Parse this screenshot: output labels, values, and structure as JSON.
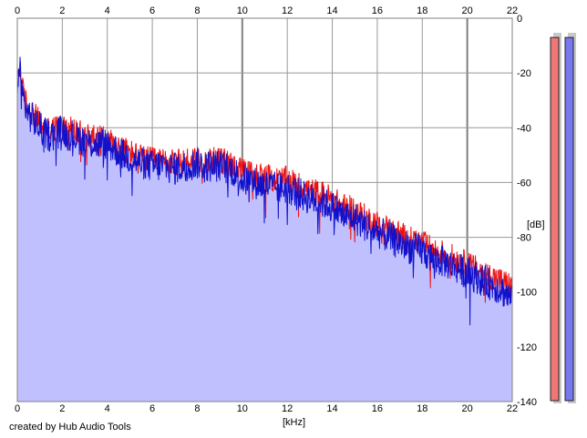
{
  "chart_data": {
    "type": "area",
    "xlabel": "[kHz]",
    "ylabel": "[dB]",
    "xlim": [
      0,
      22
    ],
    "ylim": [
      -140,
      0
    ],
    "x_ticks": [
      "0",
      "2",
      "4",
      "6",
      "8",
      "10",
      "12",
      "14",
      "16",
      "18",
      "20",
      "22"
    ],
    "y_ticks": [
      "0",
      "-20",
      "-40",
      "-60",
      "-80",
      "-100",
      "-120",
      "-140"
    ],
    "grid": true,
    "series": [
      {
        "color": "#ee1111",
        "x": [
          0,
          0.1,
          0.2,
          0.35,
          0.5,
          0.8,
          1.2,
          1.5,
          2.0,
          2.5,
          3.0,
          3.5,
          4.0,
          4.5,
          5.0,
          5.5,
          6.0,
          6.5,
          7.0,
          7.5,
          8.0,
          8.5,
          9.0,
          9.5,
          10.0,
          10.5,
          11.0,
          11.5,
          12.0,
          12.5,
          13.0,
          13.5,
          14.0,
          14.5,
          15.0,
          15.5,
          16.0,
          16.5,
          17.0,
          17.5,
          18.0,
          18.5,
          19.0,
          19.5,
          20.0,
          20.5,
          21.0,
          21.5,
          22.0
        ],
        "values": [
          -22,
          -17,
          -25,
          -30,
          -33,
          -36,
          -40,
          -41,
          -39,
          -41,
          -43,
          -44,
          -44,
          -47,
          -49,
          -51,
          -52,
          -52,
          -53,
          -52,
          -51,
          -52,
          -52,
          -53,
          -56,
          -57,
          -58,
          -59,
          -59,
          -61,
          -63,
          -64,
          -66,
          -69,
          -70,
          -73,
          -75,
          -77,
          -79,
          -81,
          -82,
          -85,
          -86,
          -88,
          -90,
          -92,
          -94,
          -96,
          -98
        ]
      },
      {
        "color": "#1111cc",
        "x": [
          0,
          0.1,
          0.2,
          0.35,
          0.5,
          0.8,
          1.2,
          1.5,
          2.0,
          2.5,
          3.0,
          3.5,
          4.0,
          4.5,
          5.0,
          5.5,
          6.0,
          6.5,
          7.0,
          7.5,
          8.0,
          8.5,
          9.0,
          9.5,
          10.0,
          10.5,
          11.0,
          11.5,
          12.0,
          12.5,
          13.0,
          13.5,
          14.0,
          14.5,
          15.0,
          15.5,
          16.0,
          16.5,
          17.0,
          17.5,
          18.0,
          18.5,
          19.0,
          19.5,
          20.0,
          20.5,
          21.0,
          21.5,
          22.0
        ],
        "values": [
          -25,
          -18,
          -27,
          -32,
          -35,
          -38,
          -42,
          -43,
          -41,
          -43,
          -45,
          -46,
          -46,
          -49,
          -51,
          -53,
          -54,
          -54,
          -55,
          -54,
          -53,
          -54,
          -54,
          -55,
          -59,
          -60,
          -61,
          -62,
          -62,
          -64,
          -66,
          -67,
          -69,
          -72,
          -73,
          -76,
          -78,
          -80,
          -82,
          -84,
          -85,
          -88,
          -89,
          -91,
          -93,
          -95,
          -97,
          -99,
          -103
        ]
      }
    ],
    "meters": [
      {
        "color": "#ee7777",
        "level": 0.98
      },
      {
        "color": "#7777ee",
        "level": 0.98
      }
    ],
    "colors": {
      "fill": "#c0c0ff",
      "grid": "#999999",
      "grid_major": "#808080"
    }
  },
  "footer": {
    "credit": "created by Hub Audio Tools"
  }
}
